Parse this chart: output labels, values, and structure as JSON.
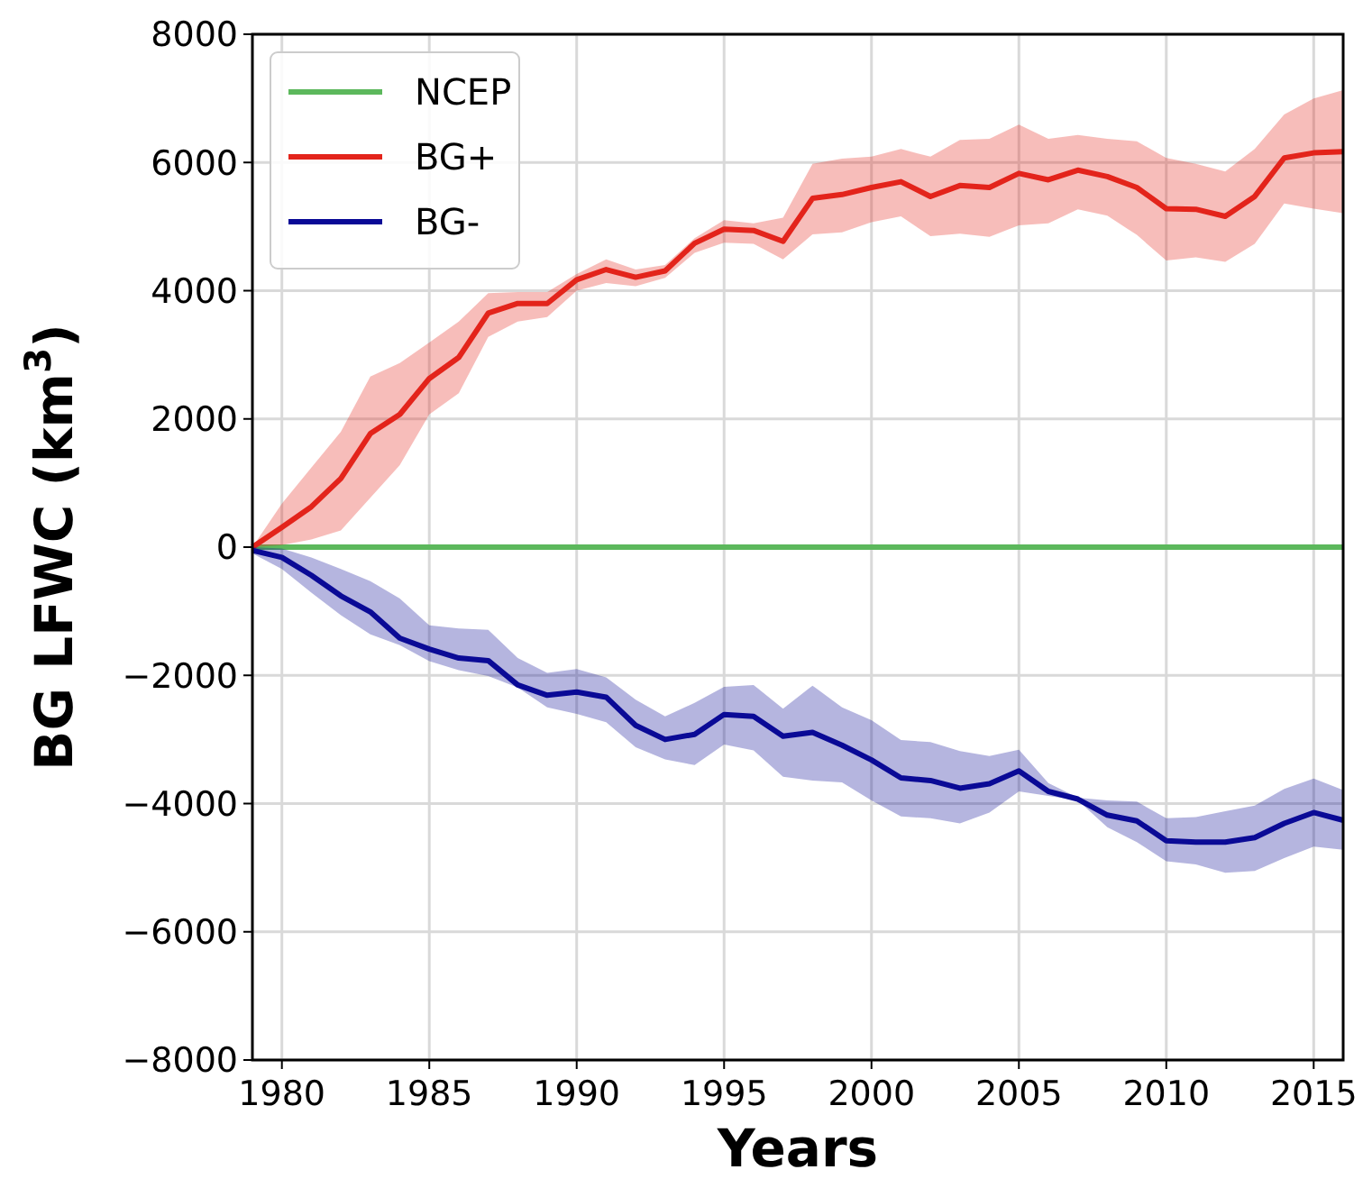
{
  "chart_data": {
    "type": "line",
    "xlabel": "Years",
    "ylabel": "BG LFWC (km$^{3}$)",
    "x": [
      1979,
      1980,
      1981,
      1982,
      1983,
      1984,
      1985,
      1986,
      1987,
      1988,
      1989,
      1990,
      1991,
      1992,
      1993,
      1994,
      1995,
      1996,
      1997,
      1998,
      1999,
      2000,
      2001,
      2002,
      2003,
      2004,
      2005,
      2006,
      2007,
      2008,
      2009,
      2010,
      2011,
      2012,
      2013,
      2014,
      2015,
      2016
    ],
    "xlim": [
      1979,
      2016
    ],
    "xticks": [
      1980,
      1985,
      1990,
      1995,
      2000,
      2005,
      2010,
      2015
    ],
    "ylim": [
      -8000,
      8000
    ],
    "yticks": [
      {
        "value": -8000,
        "label": "−8000"
      },
      {
        "value": -6000,
        "label": "−6000"
      },
      {
        "value": -4000,
        "label": "−4000"
      },
      {
        "value": -2000,
        "label": "−2000"
      },
      0,
      2000,
      4000,
      6000,
      8000
    ],
    "grid": true,
    "legend": "top left",
    "line_style": "solid",
    "marker": "none",
    "series": [
      {
        "name": "NCEP",
        "color": "#5cb85c",
        "values": [
          0,
          0,
          0,
          0,
          0,
          0,
          0,
          0,
          0,
          0,
          0,
          0,
          0,
          0,
          0,
          0,
          0,
          0,
          0,
          0,
          0,
          0,
          0,
          0,
          0,
          0,
          0,
          0,
          0,
          0,
          0,
          0,
          0,
          0,
          0,
          0,
          0,
          0
        ]
      },
      {
        "name": "BG+",
        "color": "#e3241b",
        "values": [
          0,
          310,
          630,
          1070,
          1770,
          2070,
          2630,
          2960,
          3650,
          3800,
          3800,
          4170,
          4330,
          4210,
          4310,
          4740,
          4960,
          4940,
          4770,
          5440,
          5500,
          5610,
          5700,
          5470,
          5640,
          5610,
          5830,
          5730,
          5880,
          5780,
          5610,
          5280,
          5270,
          5160,
          5470,
          6070,
          6150,
          6170
        ],
        "lower": [
          0,
          30,
          120,
          260,
          770,
          1280,
          2070,
          2400,
          3280,
          3520,
          3590,
          4000,
          4120,
          4070,
          4200,
          4590,
          4750,
          4730,
          4490,
          4880,
          4910,
          5070,
          5160,
          4850,
          4890,
          4840,
          5020,
          5050,
          5270,
          5170,
          4870,
          4470,
          4520,
          4450,
          4730,
          5360,
          5280,
          5210
        ],
        "upper": [
          0,
          680,
          1240,
          1800,
          2660,
          2870,
          3190,
          3520,
          3960,
          3980,
          3980,
          4260,
          4490,
          4330,
          4400,
          4820,
          5100,
          5050,
          5140,
          5980,
          6060,
          6090,
          6210,
          6090,
          6350,
          6370,
          6590,
          6370,
          6430,
          6370,
          6330,
          6070,
          5980,
          5860,
          6210,
          6750,
          7000,
          7130
        ]
      },
      {
        "name": "BG-",
        "color": "#0a0a96",
        "values": [
          -50,
          -160,
          -440,
          -760,
          -1010,
          -1420,
          -1590,
          -1730,
          -1770,
          -2150,
          -2310,
          -2260,
          -2340,
          -2780,
          -3000,
          -2920,
          -2610,
          -2640,
          -2950,
          -2890,
          -3090,
          -3320,
          -3600,
          -3640,
          -3760,
          -3690,
          -3490,
          -3810,
          -3930,
          -4180,
          -4270,
          -4580,
          -4600,
          -4600,
          -4530,
          -4310,
          -4140,
          -4260
        ],
        "lower": [
          -100,
          -340,
          -710,
          -1060,
          -1360,
          -1530,
          -1780,
          -1920,
          -2010,
          -2190,
          -2500,
          -2600,
          -2730,
          -3120,
          -3310,
          -3400,
          -3080,
          -3170,
          -3580,
          -3640,
          -3670,
          -3950,
          -4200,
          -4230,
          -4310,
          -4140,
          -3810,
          -3880,
          -3950,
          -4370,
          -4600,
          -4900,
          -4950,
          -5080,
          -5050,
          -4850,
          -4670,
          -4720
        ],
        "upper": [
          0,
          -20,
          -160,
          -340,
          -530,
          -800,
          -1220,
          -1270,
          -1290,
          -1730,
          -1960,
          -1900,
          -2030,
          -2380,
          -2640,
          -2430,
          -2180,
          -2150,
          -2520,
          -2160,
          -2500,
          -2700,
          -3010,
          -3040,
          -3180,
          -3260,
          -3160,
          -3680,
          -3910,
          -3950,
          -3970,
          -4230,
          -4210,
          -4120,
          -4030,
          -3770,
          -3610,
          -3790
        ]
      }
    ]
  }
}
